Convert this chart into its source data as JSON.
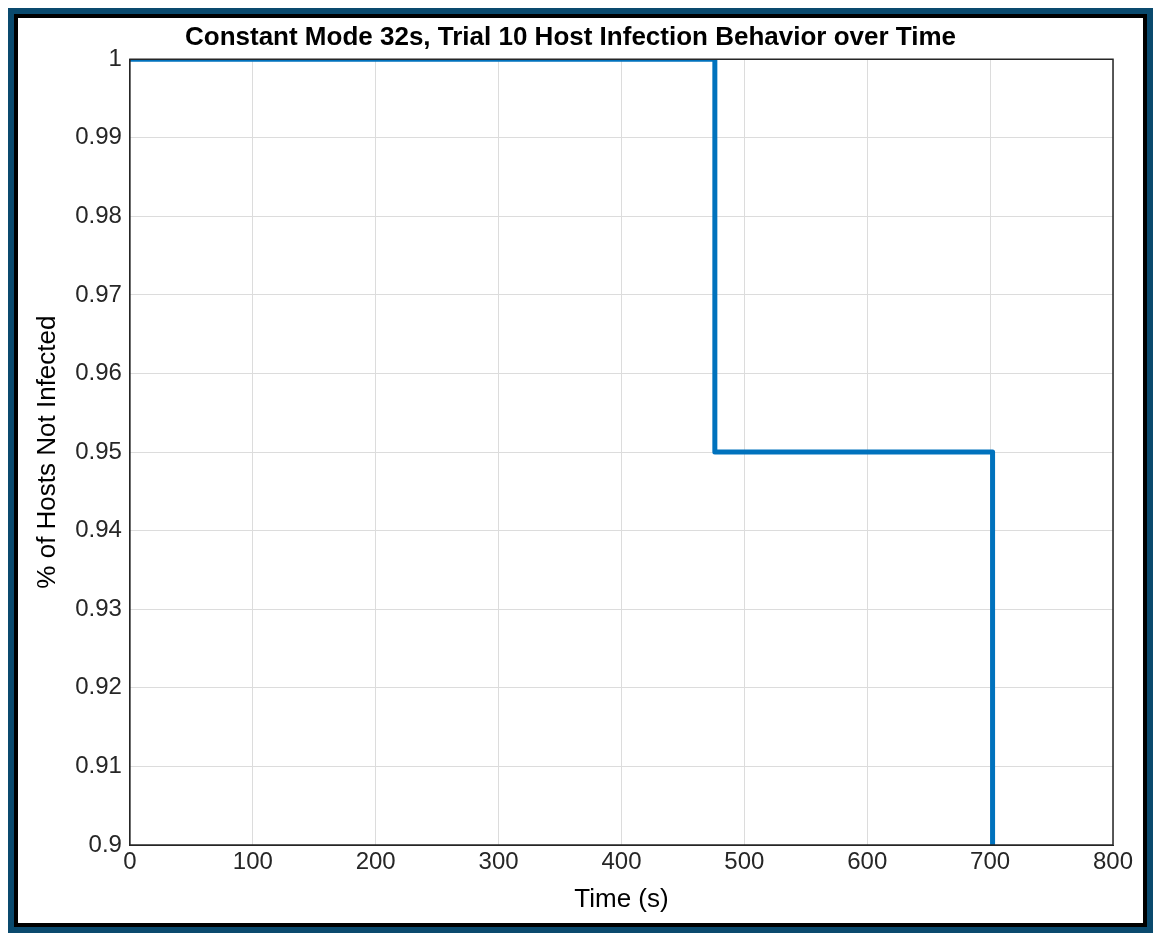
{
  "chart_data": {
    "type": "step",
    "title": "Constant Mode 32s, Trial 10 Host Infection Behavior over Time",
    "xlabel": "Time (s)",
    "ylabel": "% of Hosts Not Infected",
    "x": [
      0,
      476,
      702
    ],
    "series": [
      {
        "color": "#0072bd",
        "values": [
          1,
          0.95,
          0.9
        ]
      }
    ],
    "xlim": [
      0,
      800
    ],
    "xticks": [
      0,
      100,
      200,
      300,
      400,
      500,
      600,
      700,
      800
    ],
    "ylim": [
      0.9,
      1
    ],
    "yticks": [
      0.9,
      0.91,
      0.92,
      0.93,
      0.94,
      0.95,
      0.96,
      0.97,
      0.98,
      0.99,
      1
    ],
    "grid": true,
    "legend": false
  }
}
